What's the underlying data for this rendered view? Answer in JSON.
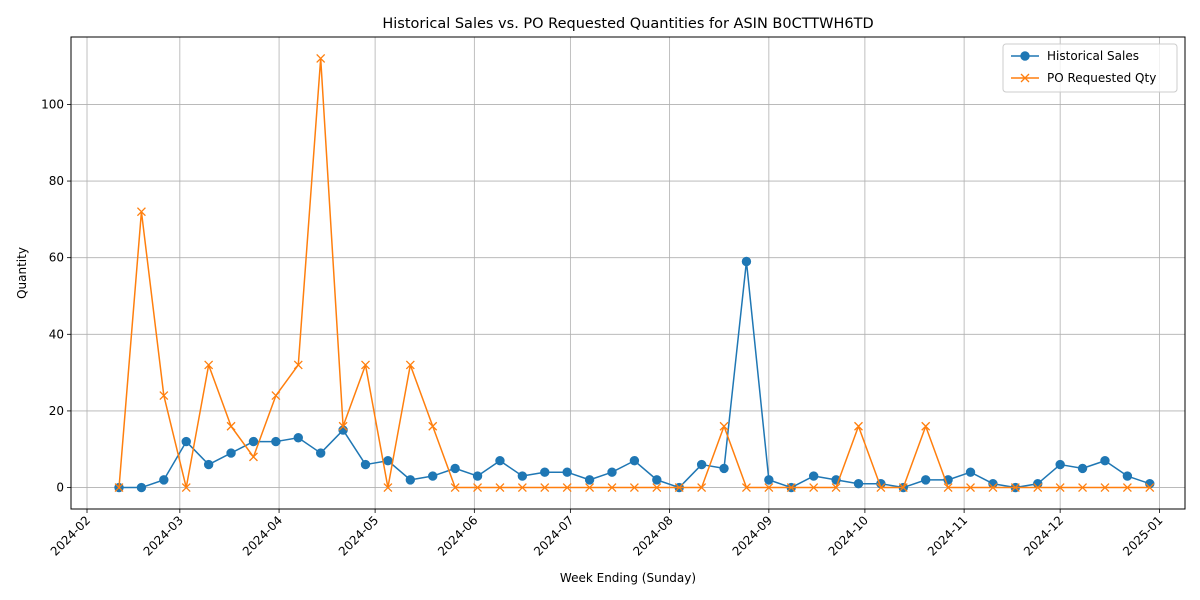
{
  "chart_data": {
    "type": "line",
    "title": "Historical Sales vs. PO Requested Quantities for ASIN B0CTTWH6TD",
    "xlabel": "Week Ending (Sunday)",
    "ylabel": "Quantity",
    "x_range": [
      "2024-01-27",
      "2025-01-09"
    ],
    "ylim": [
      -5.6,
      117.6
    ],
    "grid": true,
    "legend_position": "upper right",
    "x_ticks": [
      "2024-02-01",
      "2024-03-01",
      "2024-04-01",
      "2024-05-01",
      "2024-06-01",
      "2024-07-01",
      "2024-08-01",
      "2024-09-01",
      "2024-10-01",
      "2024-11-01",
      "2024-12-01",
      "2025-01-01"
    ],
    "x_tick_labels": [
      "2024-02",
      "2024-03",
      "2024-04",
      "2024-05",
      "2024-06",
      "2024-07",
      "2024-08",
      "2024-09",
      "2024-10",
      "2024-11",
      "2024-12",
      "2025-01"
    ],
    "y_ticks": [
      0,
      20,
      40,
      60,
      80,
      100
    ],
    "y_tick_labels": [
      "0",
      "20",
      "40",
      "60",
      "80",
      "100"
    ],
    "x": [
      "2024-02-11",
      "2024-02-18",
      "2024-02-25",
      "2024-03-03",
      "2024-03-10",
      "2024-03-17",
      "2024-03-24",
      "2024-03-31",
      "2024-04-07",
      "2024-04-14",
      "2024-04-21",
      "2024-04-28",
      "2024-05-05",
      "2024-05-12",
      "2024-05-19",
      "2024-05-26",
      "2024-06-02",
      "2024-06-09",
      "2024-06-16",
      "2024-06-23",
      "2024-06-30",
      "2024-07-07",
      "2024-07-14",
      "2024-07-21",
      "2024-07-28",
      "2024-08-04",
      "2024-08-11",
      "2024-08-18",
      "2024-08-25",
      "2024-09-01",
      "2024-09-08",
      "2024-09-15",
      "2024-09-22",
      "2024-09-29",
      "2024-10-06",
      "2024-10-13",
      "2024-10-20",
      "2024-10-27",
      "2024-11-03",
      "2024-11-10",
      "2024-11-17",
      "2024-11-24",
      "2024-12-01",
      "2024-12-08",
      "2024-12-15",
      "2024-12-22",
      "2024-12-29"
    ],
    "series": [
      {
        "name": "Historical Sales",
        "color": "#1f77b4",
        "marker": "circle",
        "values": [
          0,
          0,
          2,
          12,
          6,
          9,
          12,
          12,
          13,
          9,
          15,
          6,
          7,
          2,
          3,
          5,
          3,
          7,
          3,
          4,
          4,
          2,
          4,
          7,
          2,
          0,
          6,
          5,
          59,
          2,
          0,
          3,
          2,
          1,
          1,
          0,
          2,
          2,
          4,
          1,
          0,
          1,
          6,
          5,
          7,
          3,
          1
        ]
      },
      {
        "name": "PO Requested Qty",
        "color": "#ff7f0e",
        "marker": "x",
        "values": [
          0,
          72,
          24,
          0,
          32,
          16,
          8,
          24,
          32,
          112,
          16,
          32,
          0,
          32,
          16,
          0,
          0,
          0,
          0,
          0,
          0,
          0,
          0,
          0,
          0,
          0,
          0,
          16,
          0,
          0,
          0,
          0,
          0,
          16,
          0,
          0,
          16,
          0,
          0,
          0,
          0,
          0,
          0,
          0,
          0,
          0,
          0
        ]
      }
    ]
  }
}
